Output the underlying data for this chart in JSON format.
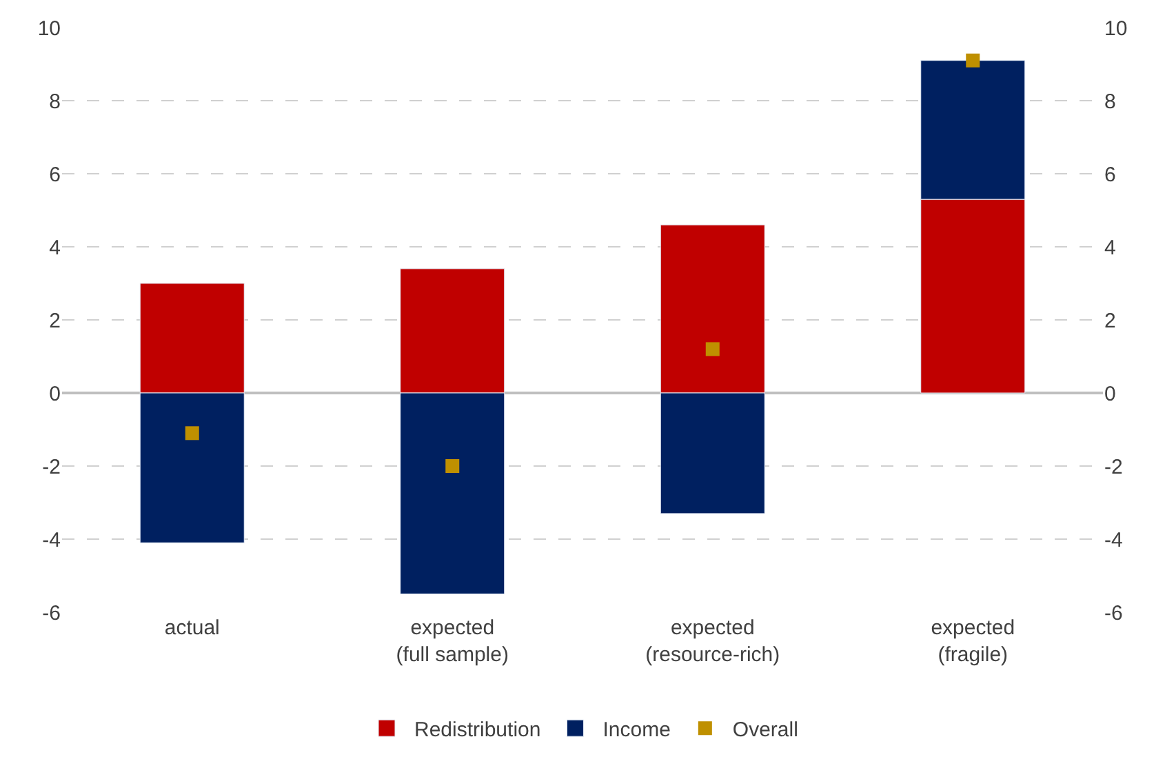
{
  "chart_data": {
    "type": "bar",
    "stacked": true,
    "categories": [
      "actual",
      "expected\n(full sample)",
      "expected\n(resource-rich)",
      "expected\n(fragile)"
    ],
    "series": [
      {
        "name": "Redistribution",
        "color": "#c00000",
        "values": [
          3.0,
          3.4,
          4.6,
          5.3
        ]
      },
      {
        "name": "Income",
        "color": "#002060",
        "values": [
          -4.1,
          -5.5,
          -3.3,
          3.8
        ]
      },
      {
        "name": "Overall",
        "type": "scatter",
        "marker": "square",
        "color": "#bf9000",
        "values": [
          -1.1,
          -2.0,
          1.2,
          9.1
        ]
      }
    ],
    "ylim": [
      -6,
      10
    ],
    "yticks": [
      -6,
      -4,
      -2,
      0,
      2,
      4,
      6,
      8,
      10
    ],
    "y2lim": [
      -6,
      10
    ],
    "y2ticks": [
      -6,
      -4,
      -2,
      0,
      2,
      4,
      6,
      8,
      10
    ],
    "grid": "y",
    "legend": "bottom"
  }
}
